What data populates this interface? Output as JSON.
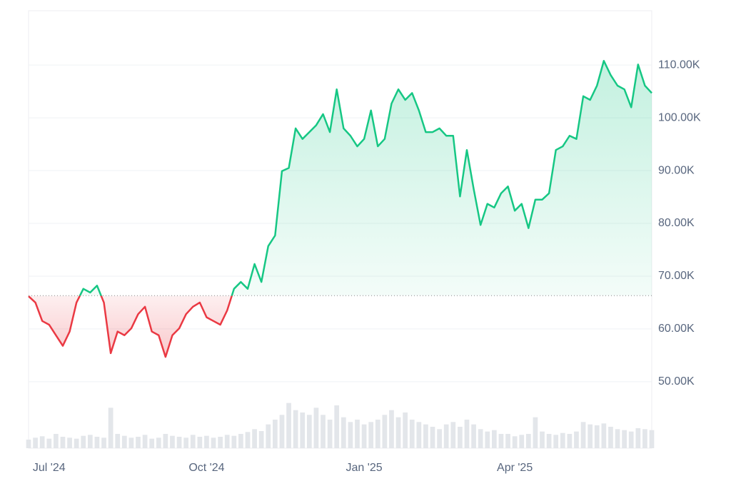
{
  "chart_data": {
    "type": "line",
    "categories": [
      null,
      null,
      null,
      "Jul '24",
      null,
      null,
      null,
      null,
      null,
      null,
      null,
      null,
      null,
      null,
      null,
      null,
      null,
      null,
      null,
      null,
      null,
      null,
      null,
      null,
      null,
      null,
      "Oct '24",
      null,
      null,
      null,
      null,
      null,
      null,
      null,
      null,
      null,
      null,
      null,
      null,
      null,
      null,
      null,
      null,
      null,
      null,
      null,
      null,
      null,
      null,
      "Jan '25",
      null,
      null,
      null,
      null,
      null,
      null,
      null,
      null,
      null,
      null,
      null,
      null,
      null,
      null,
      null,
      null,
      null,
      null,
      null,
      null,
      null,
      "Apr '25",
      null,
      null,
      null,
      null,
      null,
      null,
      null,
      null,
      null,
      null,
      null,
      null,
      null,
      null,
      null,
      null,
      null,
      null,
      null,
      null
    ],
    "values": [
      66200,
      65000,
      61500,
      60800,
      58800,
      56800,
      59500,
      65000,
      67600,
      66900,
      68200,
      65000,
      55400,
      59500,
      58800,
      60100,
      62800,
      64200,
      59500,
      58800,
      54700,
      58800,
      60100,
      62800,
      64200,
      65000,
      62200,
      61500,
      60800,
      63500,
      67600,
      68900,
      67600,
      72300,
      68900,
      75700,
      77700,
      89900,
      90500,
      98000,
      96000,
      97300,
      98600,
      100700,
      97300,
      105400,
      98000,
      96600,
      94600,
      96000,
      101400,
      94600,
      96000,
      102700,
      105400,
      103400,
      104700,
      101400,
      97300,
      97300,
      98000,
      96600,
      96600,
      85100,
      93900,
      86500,
      79700,
      83700,
      83000,
      85700,
      87000,
      82400,
      83700,
      79100,
      84500,
      84500,
      85700,
      93900,
      94600,
      96600,
      96000,
      104100,
      103400,
      106100,
      110800,
      108100,
      106100,
      105400,
      102000,
      110100,
      106100,
      104700
    ],
    "volume": [
      18,
      22,
      25,
      20,
      30,
      24,
      22,
      20,
      26,
      28,
      24,
      22,
      85,
      30,
      26,
      22,
      24,
      28,
      20,
      22,
      30,
      26,
      24,
      22,
      28,
      24,
      26,
      22,
      24,
      28,
      26,
      30,
      34,
      40,
      36,
      50,
      60,
      70,
      95,
      80,
      75,
      70,
      85,
      70,
      60,
      90,
      65,
      55,
      60,
      50,
      55,
      60,
      70,
      80,
      65,
      75,
      60,
      55,
      50,
      45,
      40,
      50,
      55,
      45,
      60,
      50,
      40,
      35,
      38,
      30,
      30,
      25,
      28,
      30,
      65,
      35,
      30,
      28,
      32,
      30,
      35,
      55,
      50,
      48,
      52,
      45,
      40,
      38,
      35,
      42,
      40,
      38
    ],
    "y2lim": [
      0,
      120
    ],
    "baseline": 66300,
    "ylim": [
      37400,
      120300
    ],
    "yticks": [
      {
        "value": 50000,
        "label": "50.00K"
      },
      {
        "value": 60000,
        "label": "60.00K"
      },
      {
        "value": 70000,
        "label": "70.00K"
      },
      {
        "value": 80000,
        "label": "80.00K"
      },
      {
        "value": 90000,
        "label": "90.00K"
      },
      {
        "value": 100000,
        "label": "100.00K"
      },
      {
        "value": 110000,
        "label": "110.00K"
      }
    ],
    "grid": true,
    "color_up": "#16c784",
    "color_down": "#ea3943",
    "volume_color": "#e3e6ea"
  }
}
